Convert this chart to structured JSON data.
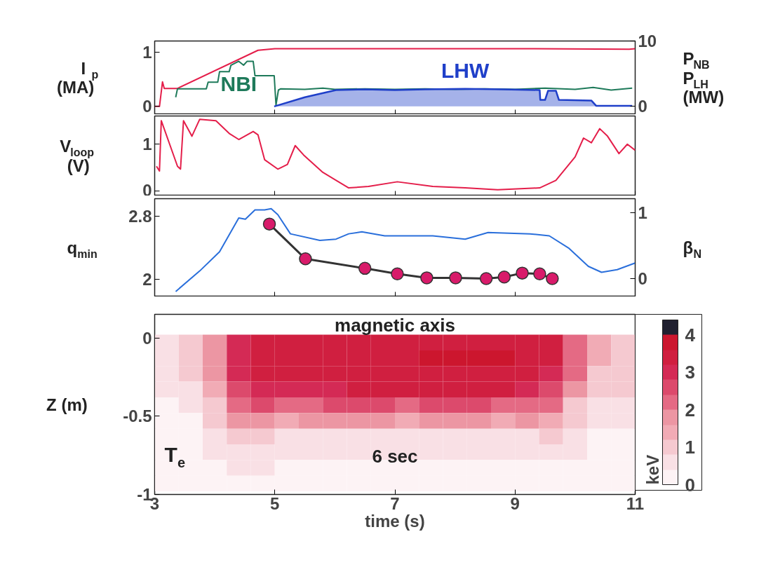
{
  "chart_data": [
    {
      "type": "line",
      "ylabel": "I$_{p}$ (MA)",
      "y2label": "P$_{NB}$ P$_{LH}$ (MW)",
      "xlim": [
        3,
        11
      ],
      "xticks": [
        3,
        5,
        7,
        9,
        11
      ],
      "ylim": [
        -0.15,
        1.2
      ],
      "yticks": [
        0,
        1
      ],
      "y2lim": [
        -1.25,
        10
      ],
      "y2ticks": [
        0,
        10
      ],
      "tick_labels": "y",
      "grid": false,
      "series": [
        {
          "color": "#e41e4a",
          "x": [
            3.0,
            3.08,
            3.13,
            3.16,
            3.38,
            4.72,
            5.0,
            7.0,
            9.0,
            10.9,
            11.0
          ],
          "values": [
            0,
            0,
            0.45,
            0.33,
            0.33,
            1.03,
            1.06,
            1.06,
            1.06,
            1.05,
            1.06
          ]
        },
        {
          "name": "NBI",
          "color": "#1e7a5a",
          "axis": "y2",
          "x": [
            3.35,
            3.38,
            3.86,
            3.89,
            4.05,
            4.08,
            4.24,
            4.27,
            4.4,
            4.48,
            4.54,
            4.64,
            4.67,
            4.99,
            5.02,
            5.06,
            5.1,
            5.5,
            5.8,
            6.0,
            6.5,
            7.0,
            7.5,
            8.0,
            8.5,
            9.0,
            9.5,
            10.0,
            10.3,
            10.6,
            10.95
          ],
          "values": [
            1.4,
            2.7,
            2.7,
            3.7,
            3.7,
            5.3,
            5.3,
            6.3,
            6.9,
            6.3,
            6.9,
            6.9,
            4.7,
            4.7,
            0.2,
            2.5,
            2.7,
            2.6,
            2.8,
            2.6,
            2.7,
            2.6,
            2.7,
            2.6,
            2.7,
            2.6,
            2.8,
            2.6,
            2.9,
            2.5,
            2.8
          ]
        },
        {
          "name": "LHW",
          "type": "area",
          "color": "#1f3fc9",
          "axis": "y2",
          "x": [
            4.99,
            5.5,
            6.02,
            6.5,
            7.0,
            7.5,
            8.17,
            8.8,
            9.41,
            9.42,
            9.5,
            9.55,
            9.68,
            9.73,
            10.27,
            10.35,
            10.95
          ],
          "values": [
            0,
            1.4,
            2.5,
            2.6,
            2.5,
            2.6,
            2.7,
            2.6,
            2.5,
            1.0,
            1.0,
            2.4,
            2.4,
            1.0,
            0.9,
            0.1,
            0.1
          ]
        }
      ]
    },
    {
      "type": "line",
      "ylabel": "V$_{loop}$ (V)",
      "xlim": [
        3,
        11
      ],
      "xticks": [
        3,
        5,
        7,
        9,
        11
      ],
      "ylim": [
        -0.1,
        1.6
      ],
      "yticks": [
        0,
        1
      ],
      "tick_labels": "y",
      "grid": false,
      "series": [
        {
          "color": "#e41e4a",
          "x": [
            3.03,
            3.08,
            3.11,
            3.38,
            3.43,
            3.48,
            3.62,
            3.75,
            4.02,
            4.24,
            4.4,
            4.64,
            4.72,
            4.83,
            5.05,
            5.21,
            5.34,
            5.48,
            5.8,
            6.23,
            6.56,
            7.04,
            7.63,
            8.17,
            8.71,
            9.41,
            9.68,
            10.0,
            10.14,
            10.27,
            10.41,
            10.54,
            10.73,
            10.87,
            11.0
          ],
          "values": [
            0.53,
            0.43,
            1.5,
            0.53,
            0.47,
            1.5,
            1.17,
            1.53,
            1.5,
            1.23,
            1.1,
            1.27,
            1.2,
            0.67,
            0.47,
            0.57,
            0.97,
            0.77,
            0.4,
            0.07,
            0.1,
            0.2,
            0.1,
            0.07,
            0.03,
            0.07,
            0.23,
            0.73,
            1.13,
            1.03,
            1.33,
            1.17,
            0.8,
            1.0,
            0.87
          ]
        }
      ]
    },
    {
      "type": "line",
      "ylabel": "q$_{min}$",
      "y2label": "β$_{N}$",
      "xlim": [
        3,
        11
      ],
      "xticks": [
        3,
        5,
        7,
        9,
        11
      ],
      "ylim": [
        1.78,
        3.02
      ],
      "yticks": [
        2,
        2.8
      ],
      "y2lim": [
        -0.27,
        1.21
      ],
      "y2ticks": [
        0,
        1
      ],
      "tick_labels": "y",
      "grid": false,
      "series": [
        {
          "color": "#2a6fdb",
          "axis": "y2",
          "x": [
            3.35,
            3.75,
            4.08,
            4.4,
            4.51,
            4.67,
            4.83,
            4.94,
            5.05,
            5.26,
            5.75,
            6.02,
            6.23,
            6.45,
            6.83,
            7.63,
            8.17,
            8.55,
            9.25,
            9.57,
            9.9,
            10.22,
            10.44,
            10.7,
            11.0
          ],
          "values": [
            -0.19,
            0.12,
            0.41,
            0.92,
            0.9,
            1.04,
            1.04,
            1.06,
            0.97,
            0.68,
            0.58,
            0.6,
            0.68,
            0.71,
            0.65,
            0.65,
            0.6,
            0.7,
            0.68,
            0.65,
            0.46,
            0.19,
            0.1,
            0.14,
            0.24
          ]
        },
        {
          "color": "#d81b6a",
          "marker": "circle",
          "x": [
            4.91,
            5.51,
            6.5,
            7.04,
            7.53,
            8.01,
            8.52,
            8.82,
            9.12,
            9.41,
            9.62
          ],
          "values": [
            2.7,
            2.26,
            2.14,
            2.07,
            2.02,
            2.02,
            2.01,
            2.03,
            2.08,
            2.07,
            2.01
          ]
        }
      ]
    },
    {
      "type": "heatmap",
      "ylabel": "Z (m)",
      "xlabel": "time (s)",
      "xlim": [
        3,
        11
      ],
      "xticks": [
        3,
        5,
        7,
        9,
        11
      ],
      "ylim": [
        -1,
        0.15
      ],
      "yticks": [
        -1,
        -0.5,
        0
      ],
      "grid": false,
      "clabel": "keV",
      "clim": [
        0,
        4.4
      ],
      "cticks": [
        0,
        1,
        2,
        3,
        4
      ],
      "colors": [
        "#fdf3f5",
        "#f9e0e5",
        "#f5c9d0",
        "#f1abb5",
        "#ec96a3",
        "#e46a84",
        "#dc4a6c",
        "#d42a55",
        "#d01f40",
        "#cc162e",
        "#202030"
      ],
      "annotations": [
        "magnetic axis",
        "T$_{e}$",
        "6 sec"
      ],
      "x": [
        3.2,
        3.6,
        4.0,
        4.4,
        4.8,
        5.2,
        5.6,
        6.0,
        6.4,
        6.8,
        7.2,
        7.6,
        8.0,
        8.4,
        8.8,
        9.2,
        9.6,
        10.0,
        10.4,
        10.8
      ],
      "y": [
        -0.03,
        -0.13,
        -0.23,
        -0.33,
        -0.43,
        -0.53,
        -0.63,
        -0.73,
        -0.83,
        -0.93
      ],
      "cells": [
        [
          0.6,
          1.0,
          1.8,
          2.8,
          3.2,
          3.4,
          3.4,
          3.2,
          3.4,
          3.4,
          3.6,
          3.6,
          3.6,
          3.6,
          3.6,
          3.6,
          3.2,
          2.4,
          1.4,
          1.2
        ],
        [
          0.6,
          1.0,
          1.8,
          3.0,
          3.4,
          3.6,
          3.4,
          3.4,
          3.6,
          3.6,
          3.6,
          3.8,
          3.8,
          3.8,
          3.8,
          3.6,
          3.2,
          2.2,
          1.4,
          1.2
        ],
        [
          0.5,
          0.8,
          1.6,
          2.8,
          3.4,
          3.4,
          3.2,
          3.4,
          3.6,
          3.6,
          3.6,
          3.6,
          3.6,
          3.6,
          3.6,
          3.4,
          3.0,
          2.0,
          1.0,
          1.0
        ],
        [
          0.4,
          0.6,
          1.4,
          2.6,
          3.0,
          3.0,
          2.8,
          3.0,
          3.2,
          3.2,
          3.2,
          3.2,
          3.2,
          3.2,
          3.2,
          3.0,
          2.6,
          1.6,
          0.8,
          0.8
        ],
        [
          0.3,
          0.4,
          1.2,
          2.2,
          2.6,
          2.4,
          2.4,
          2.6,
          2.6,
          2.6,
          2.4,
          2.6,
          2.6,
          2.6,
          2.4,
          2.4,
          2.0,
          1.2,
          0.6,
          0.6
        ],
        [
          0.2,
          0.3,
          0.8,
          1.6,
          1.6,
          1.4,
          1.6,
          1.8,
          1.6,
          1.6,
          1.4,
          1.6,
          1.6,
          1.6,
          1.4,
          1.6,
          1.4,
          0.8,
          0.4,
          0.4
        ],
        [
          0.2,
          0.2,
          0.6,
          1.0,
          0.8,
          0.6,
          0.6,
          0.6,
          0.6,
          0.6,
          0.6,
          0.6,
          0.6,
          0.6,
          0.6,
          0.6,
          0.8,
          0.6,
          0.3,
          0.3
        ],
        [
          0.1,
          0.2,
          0.4,
          0.6,
          0.6,
          0.4,
          0.4,
          0.4,
          0.4,
          0.4,
          0.4,
          0.4,
          0.4,
          0.4,
          0.4,
          0.4,
          0.4,
          0.4,
          0.2,
          0.2
        ],
        [
          0.1,
          0.1,
          0.3,
          0.4,
          0.4,
          0.3,
          0.3,
          0.3,
          0.3,
          0.3,
          0.3,
          0.3,
          0.3,
          0.3,
          0.3,
          0.3,
          0.3,
          0.3,
          0.2,
          0.1
        ],
        [
          0.1,
          0.1,
          0.2,
          0.2,
          0.2,
          0.2,
          0.2,
          0.2,
          0.2,
          0.2,
          0.2,
          0.2,
          0.2,
          0.2,
          0.2,
          0.2,
          0.2,
          0.2,
          0.1,
          0.1
        ]
      ]
    }
  ]
}
